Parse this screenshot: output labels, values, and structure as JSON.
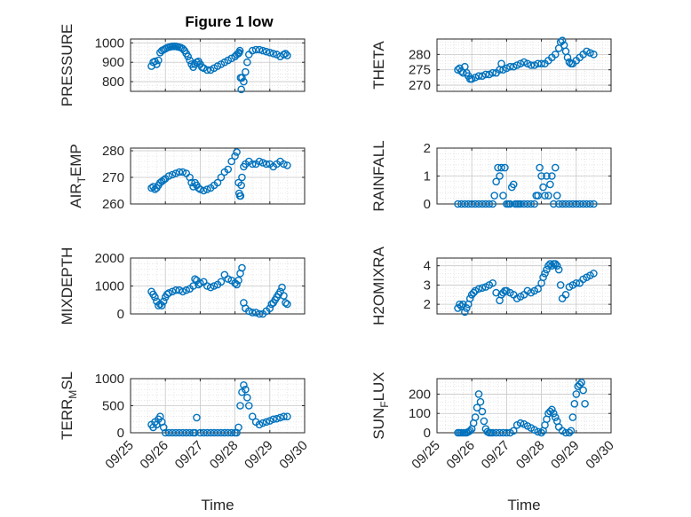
{
  "figure_title": "Figure 1 low",
  "chart_data": [
    {
      "type": "scatter",
      "ylabel": "PRESSURE",
      "ylim": [
        750,
        1020
      ],
      "yticks": [
        800,
        900,
        1000
      ],
      "ytick_labels": [
        "800",
        "900",
        "1000"
      ],
      "xlim": [
        0,
        5
      ],
      "grid": true,
      "color": "#0072BD",
      "series": [
        {
          "x": [
            0.6,
            0.65,
            0.7,
            0.75,
            0.8,
            0.85,
            0.9,
            0.95,
            1.0,
            1.05,
            1.1,
            1.15,
            1.2,
            1.25,
            1.3,
            1.35,
            1.4,
            1.45,
            1.5,
            1.55,
            1.6,
            1.65,
            1.7,
            1.75,
            1.8,
            1.85,
            1.9,
            1.95,
            2.0,
            2.05,
            2.1,
            2.2,
            2.3,
            2.4,
            2.5,
            2.6,
            2.7,
            2.8,
            2.9,
            3.0,
            3.05,
            3.1,
            3.12,
            3.14,
            3.16,
            3.18,
            3.2,
            3.25,
            3.3,
            3.35,
            3.4,
            3.5,
            3.6,
            3.7,
            3.8,
            3.9,
            4.0,
            4.1,
            4.2,
            4.3,
            4.4,
            4.45,
            4.5
          ],
          "y": [
            880,
            900,
            905,
            890,
            910,
            950,
            960,
            965,
            970,
            975,
            978,
            980,
            982,
            982,
            982,
            980,
            978,
            975,
            970,
            960,
            945,
            930,
            910,
            890,
            875,
            890,
            900,
            905,
            890,
            875,
            870,
            860,
            860,
            870,
            880,
            890,
            900,
            910,
            920,
            930,
            940,
            945,
            950,
            960,
            820,
            760,
            820,
            800,
            850,
            900,
            940,
            960,
            965,
            965,
            960,
            955,
            950,
            945,
            940,
            930,
            940,
            945,
            935
          ]
        }
      ]
    },
    {
      "type": "scatter",
      "ylabel": "THETA",
      "ylim": [
        268,
        285
      ],
      "yticks": [
        270,
        275,
        280
      ],
      "ytick_labels": [
        "270",
        "275",
        "280"
      ],
      "xlim": [
        0,
        5
      ],
      "grid": true,
      "color": "#0072BD",
      "series": [
        {
          "x": [
            0.6,
            0.65,
            0.7,
            0.75,
            0.8,
            0.85,
            0.9,
            0.95,
            1.0,
            1.1,
            1.2,
            1.3,
            1.4,
            1.5,
            1.6,
            1.7,
            1.8,
            1.85,
            1.9,
            2.0,
            2.1,
            2.2,
            2.3,
            2.4,
            2.5,
            2.6,
            2.7,
            2.8,
            2.9,
            3.0,
            3.1,
            3.2,
            3.3,
            3.4,
            3.5,
            3.55,
            3.6,
            3.65,
            3.7,
            3.75,
            3.8,
            3.85,
            3.9,
            4.0,
            4.1,
            4.2,
            4.3,
            4.4,
            4.5
          ],
          "y": [
            275,
            275.5,
            274.5,
            274,
            276,
            274,
            273,
            272,
            272,
            272.5,
            273,
            273,
            273.5,
            273.5,
            274,
            274,
            275,
            277,
            275,
            275.5,
            276,
            276,
            276.5,
            277,
            277.5,
            277,
            276.5,
            276.5,
            277,
            277,
            277,
            278,
            279,
            280,
            282,
            284,
            284.5,
            283,
            281,
            279,
            277.5,
            277,
            277,
            278,
            279,
            280,
            281,
            280.5,
            280
          ]
        }
      ]
    },
    {
      "type": "scatter",
      "ylabel": "AIR_TEMP",
      "ylim": [
        260,
        281
      ],
      "yticks": [
        260,
        270,
        280
      ],
      "ytick_labels": [
        "260",
        "270",
        "280"
      ],
      "xlim": [
        0,
        5
      ],
      "grid": true,
      "color": "#0072BD",
      "series": [
        {
          "x": [
            0.6,
            0.65,
            0.7,
            0.75,
            0.8,
            0.85,
            0.9,
            0.95,
            1.0,
            1.1,
            1.2,
            1.3,
            1.4,
            1.5,
            1.6,
            1.7,
            1.75,
            1.8,
            1.85,
            1.9,
            1.95,
            2.0,
            2.1,
            2.2,
            2.3,
            2.4,
            2.5,
            2.6,
            2.7,
            2.8,
            2.9,
            3.0,
            3.05,
            3.1,
            3.12,
            3.14,
            3.16,
            3.18,
            3.2,
            3.25,
            3.3,
            3.4,
            3.5,
            3.6,
            3.7,
            3.8,
            3.9,
            4.0,
            4.1,
            4.2,
            4.3,
            4.4,
            4.5
          ],
          "y": [
            266,
            266.5,
            265.5,
            266,
            267,
            268,
            268.5,
            269,
            269.5,
            270.5,
            271,
            271.5,
            272,
            272,
            271.5,
            270,
            268,
            266.5,
            268,
            267,
            266,
            265.5,
            265,
            265.5,
            266,
            267,
            268,
            270,
            272,
            273,
            276,
            278,
            279.5,
            268,
            264,
            263,
            263,
            267,
            270,
            274,
            275,
            276,
            275,
            275,
            276,
            275.5,
            275,
            275,
            274,
            275,
            276,
            275,
            274.5
          ]
        }
      ]
    },
    {
      "type": "scatter",
      "ylabel": "RAINFALL",
      "ylim": [
        0,
        2
      ],
      "yticks": [
        0,
        1,
        2
      ],
      "ytick_labels": [
        "0",
        "1",
        "2"
      ],
      "xlim": [
        0,
        5
      ],
      "grid": true,
      "color": "#0072BD",
      "series": [
        {
          "x": [
            0.6,
            0.7,
            0.8,
            0.9,
            1.0,
            1.1,
            1.2,
            1.3,
            1.4,
            1.5,
            1.6,
            1.65,
            1.7,
            1.75,
            1.8,
            1.85,
            1.9,
            1.95,
            2.0,
            2.05,
            2.1,
            2.15,
            2.2,
            2.25,
            2.3,
            2.35,
            2.4,
            2.5,
            2.6,
            2.7,
            2.8,
            2.85,
            2.9,
            2.95,
            3.0,
            3.05,
            3.1,
            3.15,
            3.2,
            3.25,
            3.3,
            3.35,
            3.4,
            3.45,
            3.5,
            3.6,
            3.7,
            3.8,
            3.9,
            4.0,
            4.1,
            4.2,
            4.3,
            4.4,
            4.5
          ],
          "y": [
            0,
            0,
            0,
            0,
            0,
            0,
            0,
            0,
            0,
            0,
            0,
            0.3,
            0.8,
            1.3,
            1.0,
            1.3,
            0.3,
            1.3,
            0,
            0,
            0,
            0.6,
            0.7,
            0,
            0,
            0,
            0,
            0,
            0,
            0,
            0,
            0.3,
            0.3,
            1.3,
            1.0,
            0.6,
            0.3,
            1.0,
            0.3,
            0.7,
            1.0,
            0,
            1.3,
            0.3,
            0,
            0,
            0,
            0,
            0,
            0,
            0,
            0,
            0,
            0,
            0
          ]
        }
      ]
    },
    {
      "type": "scatter",
      "ylabel": "MIXDEPTH",
      "ylim": [
        0,
        2000
      ],
      "yticks": [
        0,
        1000,
        2000
      ],
      "ytick_labels": [
        "0",
        "1000",
        "2000"
      ],
      "xlim": [
        0,
        5
      ],
      "grid": true,
      "color": "#0072BD",
      "series": [
        {
          "x": [
            0.6,
            0.65,
            0.7,
            0.75,
            0.8,
            0.85,
            0.9,
            0.95,
            1.0,
            1.05,
            1.1,
            1.2,
            1.3,
            1.4,
            1.5,
            1.6,
            1.7,
            1.8,
            1.85,
            1.9,
            1.95,
            2.0,
            2.1,
            2.2,
            2.3,
            2.4,
            2.5,
            2.6,
            2.7,
            2.8,
            2.9,
            3.0,
            3.05,
            3.1,
            3.15,
            3.2,
            3.25,
            3.3,
            3.4,
            3.5,
            3.6,
            3.7,
            3.8,
            3.9,
            4.0,
            4.05,
            4.1,
            4.15,
            4.2,
            4.25,
            4.3,
            4.35,
            4.4,
            4.45,
            4.5
          ],
          "y": [
            800,
            700,
            600,
            450,
            300,
            350,
            300,
            450,
            600,
            700,
            750,
            800,
            850,
            850,
            800,
            850,
            900,
            1000,
            1250,
            1200,
            1050,
            1100,
            1150,
            1000,
            950,
            1000,
            1050,
            1150,
            1400,
            1250,
            1200,
            1100,
            1050,
            1200,
            1450,
            1650,
            400,
            200,
            100,
            50,
            50,
            0,
            0,
            100,
            200,
            350,
            400,
            500,
            600,
            700,
            800,
            950,
            650,
            400,
            350
          ]
        }
      ]
    },
    {
      "type": "scatter",
      "ylabel": "H2OMIXRA",
      "ylim": [
        1.5,
        4.4
      ],
      "yticks": [
        2,
        3,
        4
      ],
      "ytick_labels": [
        "2",
        "3",
        "4"
      ],
      "xlim": [
        0,
        5
      ],
      "grid": true,
      "color": "#0072BD",
      "series": [
        {
          "x": [
            0.6,
            0.65,
            0.7,
            0.75,
            0.8,
            0.85,
            0.9,
            0.95,
            1.0,
            1.05,
            1.1,
            1.2,
            1.3,
            1.4,
            1.5,
            1.6,
            1.7,
            1.8,
            1.85,
            1.9,
            1.95,
            2.0,
            2.1,
            2.2,
            2.3,
            2.4,
            2.5,
            2.6,
            2.7,
            2.8,
            2.9,
            3.0,
            3.05,
            3.1,
            3.15,
            3.2,
            3.25,
            3.3,
            3.35,
            3.4,
            3.45,
            3.5,
            3.55,
            3.6,
            3.7,
            3.8,
            3.9,
            4.0,
            4.1,
            4.2,
            4.3,
            4.4,
            4.5
          ],
          "y": [
            1.8,
            2.0,
            1.9,
            2.0,
            1.6,
            1.8,
            2.0,
            2.3,
            2.5,
            2.6,
            2.7,
            2.8,
            2.85,
            2.9,
            3.0,
            3.1,
            2.6,
            2.2,
            2.5,
            2.6,
            2.7,
            2.7,
            2.6,
            2.5,
            2.3,
            2.4,
            2.5,
            2.7,
            2.6,
            2.7,
            2.8,
            3.1,
            3.4,
            3.6,
            3.8,
            4.0,
            4.1,
            4.0,
            4.1,
            4.1,
            4.0,
            3.8,
            3.0,
            2.3,
            2.5,
            2.9,
            3.0,
            3.1,
            3.1,
            3.3,
            3.4,
            3.5,
            3.6
          ]
        }
      ]
    },
    {
      "type": "scatter",
      "ylabel": "TERR_MSL",
      "ylim": [
        0,
        1000
      ],
      "yticks": [
        0,
        500,
        1000
      ],
      "ytick_labels": [
        "0",
        "500",
        "1000"
      ],
      "xlim": [
        0,
        5
      ],
      "grid": true,
      "color": "#0072BD",
      "series": [
        {
          "x": [
            0.6,
            0.65,
            0.7,
            0.75,
            0.8,
            0.85,
            0.9,
            0.95,
            1.0,
            1.1,
            1.2,
            1.3,
            1.4,
            1.5,
            1.6,
            1.7,
            1.8,
            1.85,
            1.9,
            2.0,
            2.1,
            2.2,
            2.3,
            2.4,
            2.5,
            2.6,
            2.7,
            2.8,
            2.9,
            3.0,
            3.05,
            3.1,
            3.15,
            3.2,
            3.25,
            3.3,
            3.35,
            3.4,
            3.5,
            3.6,
            3.7,
            3.8,
            3.9,
            4.0,
            4.1,
            4.2,
            4.3,
            4.4,
            4.5
          ],
          "y": [
            150,
            100,
            200,
            150,
            250,
            300,
            200,
            100,
            0,
            0,
            0,
            0,
            0,
            0,
            0,
            0,
            0,
            0,
            280,
            0,
            0,
            0,
            0,
            0,
            0,
            0,
            0,
            0,
            0,
            0,
            0,
            100,
            500,
            750,
            880,
            800,
            650,
            500,
            300,
            200,
            150,
            180,
            200,
            220,
            250,
            260,
            280,
            300,
            300
          ]
        }
      ]
    },
    {
      "type": "scatter",
      "ylabel": "SUN_FLUX",
      "ylim": [
        0,
        280
      ],
      "yticks": [
        0,
        100,
        200
      ],
      "ytick_labels": [
        "0",
        "100",
        "200"
      ],
      "xlim": [
        0,
        5
      ],
      "grid": true,
      "color": "#0072BD",
      "series": [
        {
          "x": [
            0.6,
            0.65,
            0.7,
            0.75,
            0.8,
            0.85,
            0.9,
            0.95,
            1.0,
            1.05,
            1.1,
            1.15,
            1.2,
            1.25,
            1.3,
            1.35,
            1.4,
            1.45,
            1.5,
            1.55,
            1.6,
            1.7,
            1.8,
            1.9,
            2.0,
            2.1,
            2.2,
            2.3,
            2.4,
            2.5,
            2.6,
            2.7,
            2.8,
            2.9,
            3.0,
            3.05,
            3.1,
            3.15,
            3.2,
            3.25,
            3.3,
            3.35,
            3.4,
            3.45,
            3.5,
            3.6,
            3.7,
            3.8,
            3.85,
            3.9,
            3.95,
            4.0,
            4.05,
            4.1,
            4.15,
            4.2,
            4.25
          ],
          "y": [
            0,
            0,
            0,
            0,
            0,
            0,
            5,
            10,
            20,
            50,
            80,
            130,
            200,
            160,
            110,
            60,
            20,
            5,
            0,
            0,
            0,
            0,
            0,
            0,
            0,
            0,
            10,
            40,
            50,
            45,
            35,
            25,
            15,
            5,
            0,
            10,
            40,
            70,
            100,
            110,
            120,
            100,
            80,
            60,
            30,
            10,
            0,
            0,
            10,
            80,
            150,
            200,
            240,
            250,
            260,
            220,
            150
          ]
        }
      ]
    }
  ],
  "shared_x_axis": {
    "xlabel": "Time",
    "tick_labels": [
      "09/25",
      "09/26",
      "09/27",
      "09/28",
      "09/29",
      "09/30"
    ]
  }
}
